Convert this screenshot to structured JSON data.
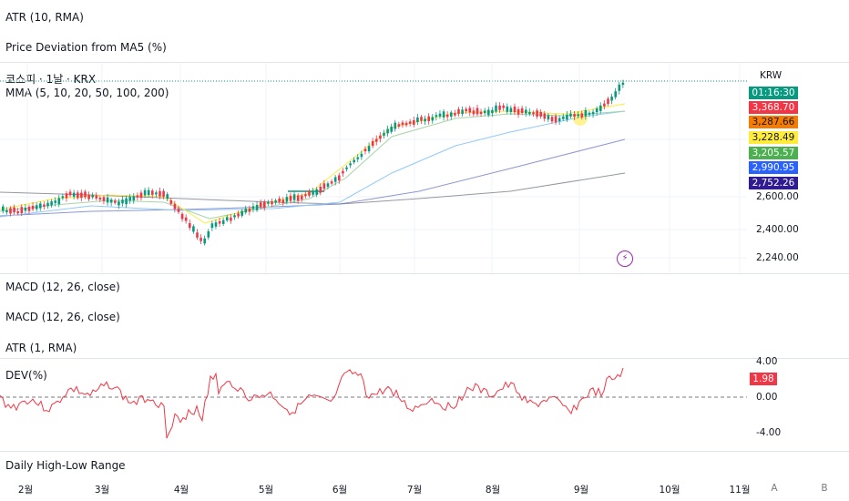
{
  "panes": {
    "atr10_title": "ATR (10, RMA)",
    "pricedev_title": "Price Deviation from MA5 (%)",
    "symbol_title": "코스피 · 1날 · KRX",
    "mma_title": "MMA (5, 10, 20, 50, 100, 200)",
    "macd1_title": "MACD (12, 26, close)",
    "macd2_title": "MACD (12, 26, close)",
    "atr1_title": "ATR (1, RMA)",
    "dev_title": "DEV(%)",
    "range_title": "Daily High-Low Range"
  },
  "price_axis": {
    "currency": "KRW",
    "labels": [
      "2,600.00",
      "2,400.00",
      "2,240.00"
    ],
    "badges": [
      {
        "text": "01:16:30",
        "bg": "#089981",
        "fg": "#ffffff"
      },
      {
        "text": "3,368.70",
        "bg": "#f23645",
        "fg": "#ffffff"
      },
      {
        "text": "3,287.66",
        "bg": "#f57c00",
        "fg": "#131722"
      },
      {
        "text": "3,228.49",
        "bg": "#ffeb3b",
        "fg": "#131722"
      },
      {
        "text": "3,205.57",
        "bg": "#4caf50",
        "fg": "#ffffff"
      },
      {
        "text": "2,990.95",
        "bg": "#2962ff",
        "fg": "#ffffff"
      },
      {
        "text": "2,752.26",
        "bg": "#311b92",
        "fg": "#ffffff"
      }
    ]
  },
  "dev_axis": {
    "labels": [
      "4.00",
      "0.00",
      "-4.00"
    ],
    "badge": {
      "text": "1.98",
      "bg": "#f23645",
      "fg": "#ffffff"
    }
  },
  "time_axis": {
    "labels": [
      "2월",
      "3월",
      "4월",
      "5월",
      "6월",
      "7월",
      "8월",
      "9월",
      "10월",
      "11월"
    ],
    "buttons": [
      "A",
      "B"
    ]
  },
  "colors": {
    "up": "#089981",
    "down": "#f23645",
    "dev_line": "#f23645",
    "ma5": "#f57c00",
    "ma10": "#ffeb3b",
    "ma20": "#a5d6a7",
    "ma50": "#90caf9",
    "ma100": "#5c6bc0",
    "ma200": "#9598a1"
  },
  "icons": {
    "alert": "lightning-icon"
  }
}
